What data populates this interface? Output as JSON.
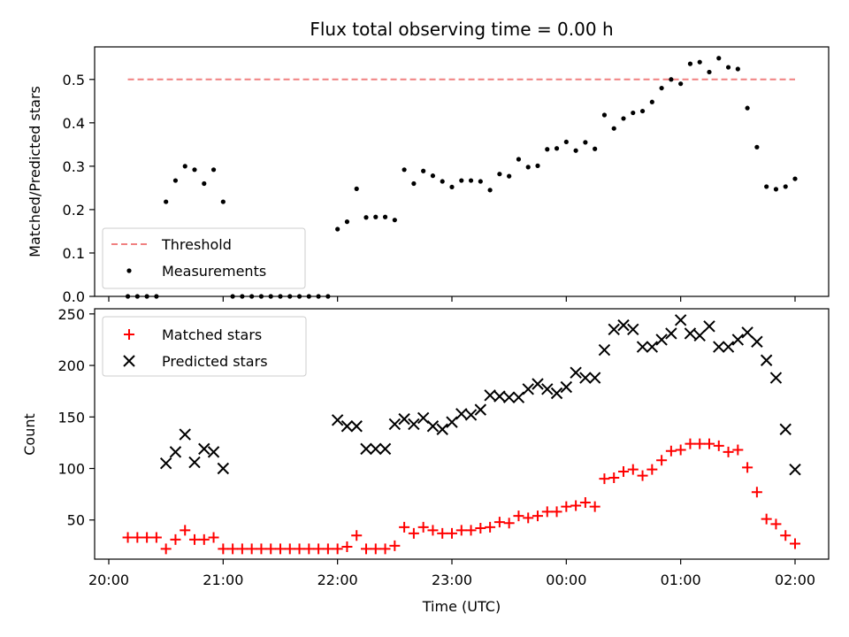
{
  "chart_data": [
    {
      "type": "scatter",
      "title": "Flux total observing time = 0.00 h",
      "ylabel": "Matched/Predicted stars",
      "ylim": [
        0,
        0.575
      ],
      "yticks": [
        "0.0",
        "0.1",
        "0.2",
        "0.3",
        "0.4",
        "0.5"
      ],
      "legend_position": "lower-left",
      "threshold": {
        "name": "Threshold",
        "value": 0.5,
        "x_start": "20:10",
        "x_end": "02:00",
        "color": "#f08080"
      },
      "series": [
        {
          "name": "Measurements",
          "color": "#000000",
          "x": [
            "20:10",
            "20:15",
            "20:20",
            "20:25",
            "20:30",
            "20:35",
            "20:40",
            "20:45",
            "20:50",
            "20:55",
            "21:00",
            "21:05",
            "21:10",
            "21:15",
            "21:20",
            "21:25",
            "21:30",
            "21:35",
            "21:40",
            "21:45",
            "21:50",
            "21:55",
            "22:00",
            "22:05",
            "22:10",
            "22:15",
            "22:20",
            "22:25",
            "22:30",
            "22:35",
            "22:40",
            "22:45",
            "22:50",
            "22:55",
            "23:00",
            "23:05",
            "23:10",
            "23:15",
            "23:20",
            "23:25",
            "23:30",
            "23:35",
            "23:40",
            "23:45",
            "23:50",
            "23:55",
            "00:00",
            "00:05",
            "00:10",
            "00:15",
            "00:20",
            "00:25",
            "00:30",
            "00:35",
            "00:40",
            "00:45",
            "00:50",
            "00:55",
            "01:00",
            "01:05",
            "01:10",
            "01:15",
            "01:20",
            "01:25",
            "01:30",
            "01:35",
            "01:40",
            "01:45",
            "01:50",
            "01:55",
            "02:00"
          ],
          "y": [
            0,
            0,
            0,
            0,
            0.218,
            0.267,
            0.3,
            0.292,
            0.26,
            0.292,
            0.218,
            0,
            0,
            0,
            0,
            0,
            0,
            0,
            0,
            0,
            0,
            0,
            0.155,
            0.172,
            0.248,
            0.182,
            0.183,
            0.183,
            0.176,
            0.292,
            0.26,
            0.289,
            0.278,
            0.265,
            0.252,
            0.267,
            0.267,
            0.265,
            0.245,
            0.282,
            0.277,
            0.316,
            0.298,
            0.301,
            0.339,
            0.341,
            0.356,
            0.336,
            0.355,
            0.34,
            0.418,
            0.387,
            0.41,
            0.423,
            0.427,
            0.448,
            0.48,
            0.5,
            0.49,
            0.536,
            0.54,
            0.517,
            0.549,
            0.528,
            0.524,
            0.434,
            0.344,
            0.253,
            0.247,
            0.253,
            0.271
          ]
        }
      ]
    },
    {
      "type": "scatter",
      "xlabel": "Time (UTC)",
      "ylabel": "Count",
      "ylim": [
        12,
        255
      ],
      "yticks": [
        "50",
        "100",
        "150",
        "200",
        "250"
      ],
      "xticks": [
        "20:00",
        "21:00",
        "22:00",
        "23:00",
        "00:00",
        "01:00",
        "02:00"
      ],
      "legend_position": "upper-left",
      "series": [
        {
          "name": "Matched stars",
          "marker": "+",
          "color": "#ff0000",
          "x": [
            "20:10",
            "20:15",
            "20:20",
            "20:25",
            "20:30",
            "20:35",
            "20:40",
            "20:45",
            "20:50",
            "20:55",
            "21:00",
            "21:05",
            "21:10",
            "21:15",
            "21:20",
            "21:25",
            "21:30",
            "21:35",
            "21:40",
            "21:45",
            "21:50",
            "21:55",
            "22:00",
            "22:05",
            "22:10",
            "22:15",
            "22:20",
            "22:25",
            "22:30",
            "22:35",
            "22:40",
            "22:45",
            "22:50",
            "22:55",
            "23:00",
            "23:05",
            "23:10",
            "23:15",
            "23:20",
            "23:25",
            "23:30",
            "23:35",
            "23:40",
            "23:45",
            "23:50",
            "23:55",
            "00:00",
            "00:05",
            "00:10",
            "00:15",
            "00:20",
            "00:25",
            "00:30",
            "00:35",
            "00:40",
            "00:45",
            "00:50",
            "00:55",
            "01:00",
            "01:05",
            "01:10",
            "01:15",
            "01:20",
            "01:25",
            "01:30",
            "01:35",
            "01:40",
            "01:45",
            "01:50",
            "01:55",
            "02:00"
          ],
          "y": [
            33,
            33,
            33,
            33,
            22,
            31,
            40,
            31,
            31,
            33,
            22,
            22,
            22,
            22,
            22,
            22,
            22,
            22,
            22,
            22,
            22,
            22,
            22,
            24,
            35,
            22,
            22,
            22,
            25,
            43,
            37,
            43,
            40,
            37,
            37,
            40,
            40,
            42,
            43,
            48,
            47,
            54,
            52,
            54,
            58,
            58,
            63,
            64,
            67,
            63,
            90,
            91,
            97,
            99,
            93,
            99,
            108,
            117,
            118,
            124,
            124,
            124,
            122,
            116,
            118,
            101,
            77,
            51,
            46,
            35,
            27
          ]
        },
        {
          "name": "Predicted stars",
          "marker": "x",
          "color": "#000000",
          "x": [
            "20:30",
            "20:35",
            "20:40",
            "20:45",
            "20:50",
            "20:55",
            "21:00",
            "22:00",
            "22:05",
            "22:10",
            "22:15",
            "22:20",
            "22:25",
            "22:30",
            "22:35",
            "22:40",
            "22:45",
            "22:50",
            "22:55",
            "23:00",
            "23:05",
            "23:10",
            "23:15",
            "23:20",
            "23:25",
            "23:30",
            "23:35",
            "23:40",
            "23:45",
            "23:50",
            "23:55",
            "00:00",
            "00:05",
            "00:10",
            "00:15",
            "00:20",
            "00:25",
            "00:30",
            "00:35",
            "00:40",
            "00:45",
            "00:50",
            "00:55",
            "01:00",
            "01:05",
            "01:10",
            "01:15",
            "01:20",
            "01:25",
            "01:30",
            "01:35",
            "01:40",
            "01:45",
            "01:50",
            "01:55",
            "02:00"
          ],
          "y": [
            105,
            116,
            133,
            106,
            119,
            116,
            100,
            147,
            141,
            141,
            119,
            119,
            119,
            143,
            148,
            143,
            149,
            141,
            138,
            145,
            153,
            152,
            157,
            171,
            170,
            169,
            169,
            177,
            182,
            177,
            173,
            179,
            193,
            188,
            188,
            215,
            235,
            239,
            235,
            218,
            218,
            225,
            231,
            244,
            231,
            229,
            238,
            218,
            218,
            225,
            232,
            223,
            205,
            188,
            138,
            99
          ]
        }
      ]
    }
  ]
}
